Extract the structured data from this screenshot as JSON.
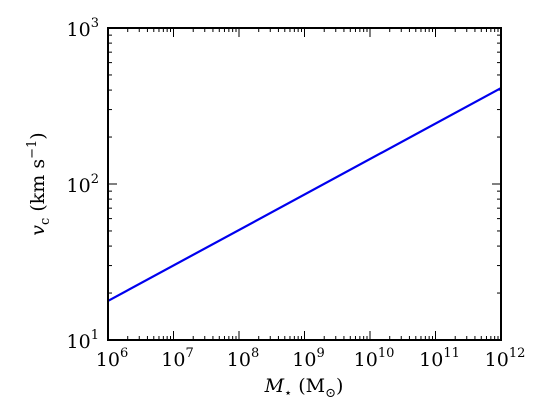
{
  "chart_data": {
    "type": "line",
    "xscale": "log",
    "yscale": "log",
    "xlim": [
      1000000,
      1000000000000
    ],
    "ylim": [
      10,
      1000
    ],
    "grid": false,
    "legend": "none",
    "xlabel": {
      "var": "M",
      "sub": "⋆",
      "unit_open": " (M",
      "unit_sub": "⊙",
      "unit_close": ")"
    },
    "ylabel": {
      "var": "v",
      "sub": "c",
      "unit": " (km s",
      "unit_exp": "−1",
      "unit_close": ")"
    },
    "x_ticks": [
      {
        "base": "10",
        "exp": "6"
      },
      {
        "base": "10",
        "exp": "7"
      },
      {
        "base": "10",
        "exp": "8"
      },
      {
        "base": "10",
        "exp": "9"
      },
      {
        "base": "10",
        "exp": "10"
      },
      {
        "base": "10",
        "exp": "11"
      },
      {
        "base": "10",
        "exp": "12"
      }
    ],
    "y_ticks": [
      {
        "base": "10",
        "exp": "1"
      },
      {
        "base": "10",
        "exp": "2"
      },
      {
        "base": "10",
        "exp": "3"
      }
    ],
    "series": [
      {
        "color": "#0000ee",
        "x": [
          1000000,
          1000000000000
        ],
        "y": [
          17.8,
          412
        ]
      }
    ]
  }
}
